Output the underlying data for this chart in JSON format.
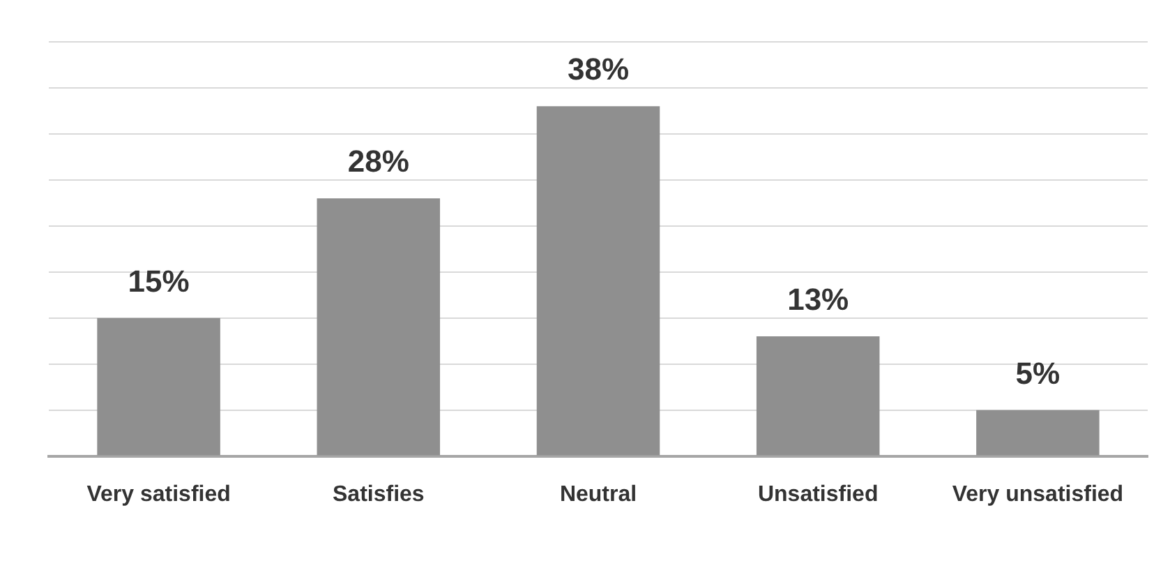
{
  "chart_data": {
    "type": "bar",
    "categories": [
      "Very satisfied",
      "Satisfies",
      "Neutral",
      "Unsatisfied",
      "Very unsatisfied"
    ],
    "values": [
      15,
      28,
      38,
      13,
      5
    ],
    "value_labels": [
      "15%",
      "28%",
      "38%",
      "13%",
      "5%"
    ],
    "color": "#8f8f8f",
    "ylim": [
      0,
      45
    ],
    "yticks": [
      0,
      5,
      10,
      15,
      20,
      25,
      30,
      35,
      40,
      45
    ],
    "tick_labels": "x",
    "grid": "y",
    "legend": false
  }
}
